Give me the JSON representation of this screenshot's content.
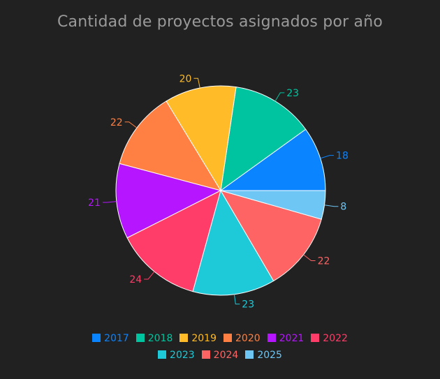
{
  "chart_data": {
    "type": "pie",
    "title": "Cantidad de proyectos asignados por año",
    "categories": [
      "2017",
      "2018",
      "2019",
      "2020",
      "2021",
      "2022",
      "2023",
      "2024",
      "2025"
    ],
    "values": [
      18,
      23,
      20,
      22,
      21,
      24,
      23,
      22,
      8
    ],
    "colors": [
      "#0a84ff",
      "#00c49f",
      "#ffbb28",
      "#ff8042",
      "#b515ff",
      "#ff3d68",
      "#1ec9d8",
      "#ff6464",
      "#6ec6f5"
    ],
    "legend_position": "bottom",
    "background": "#212121",
    "title_color": "#9a9a9a"
  }
}
